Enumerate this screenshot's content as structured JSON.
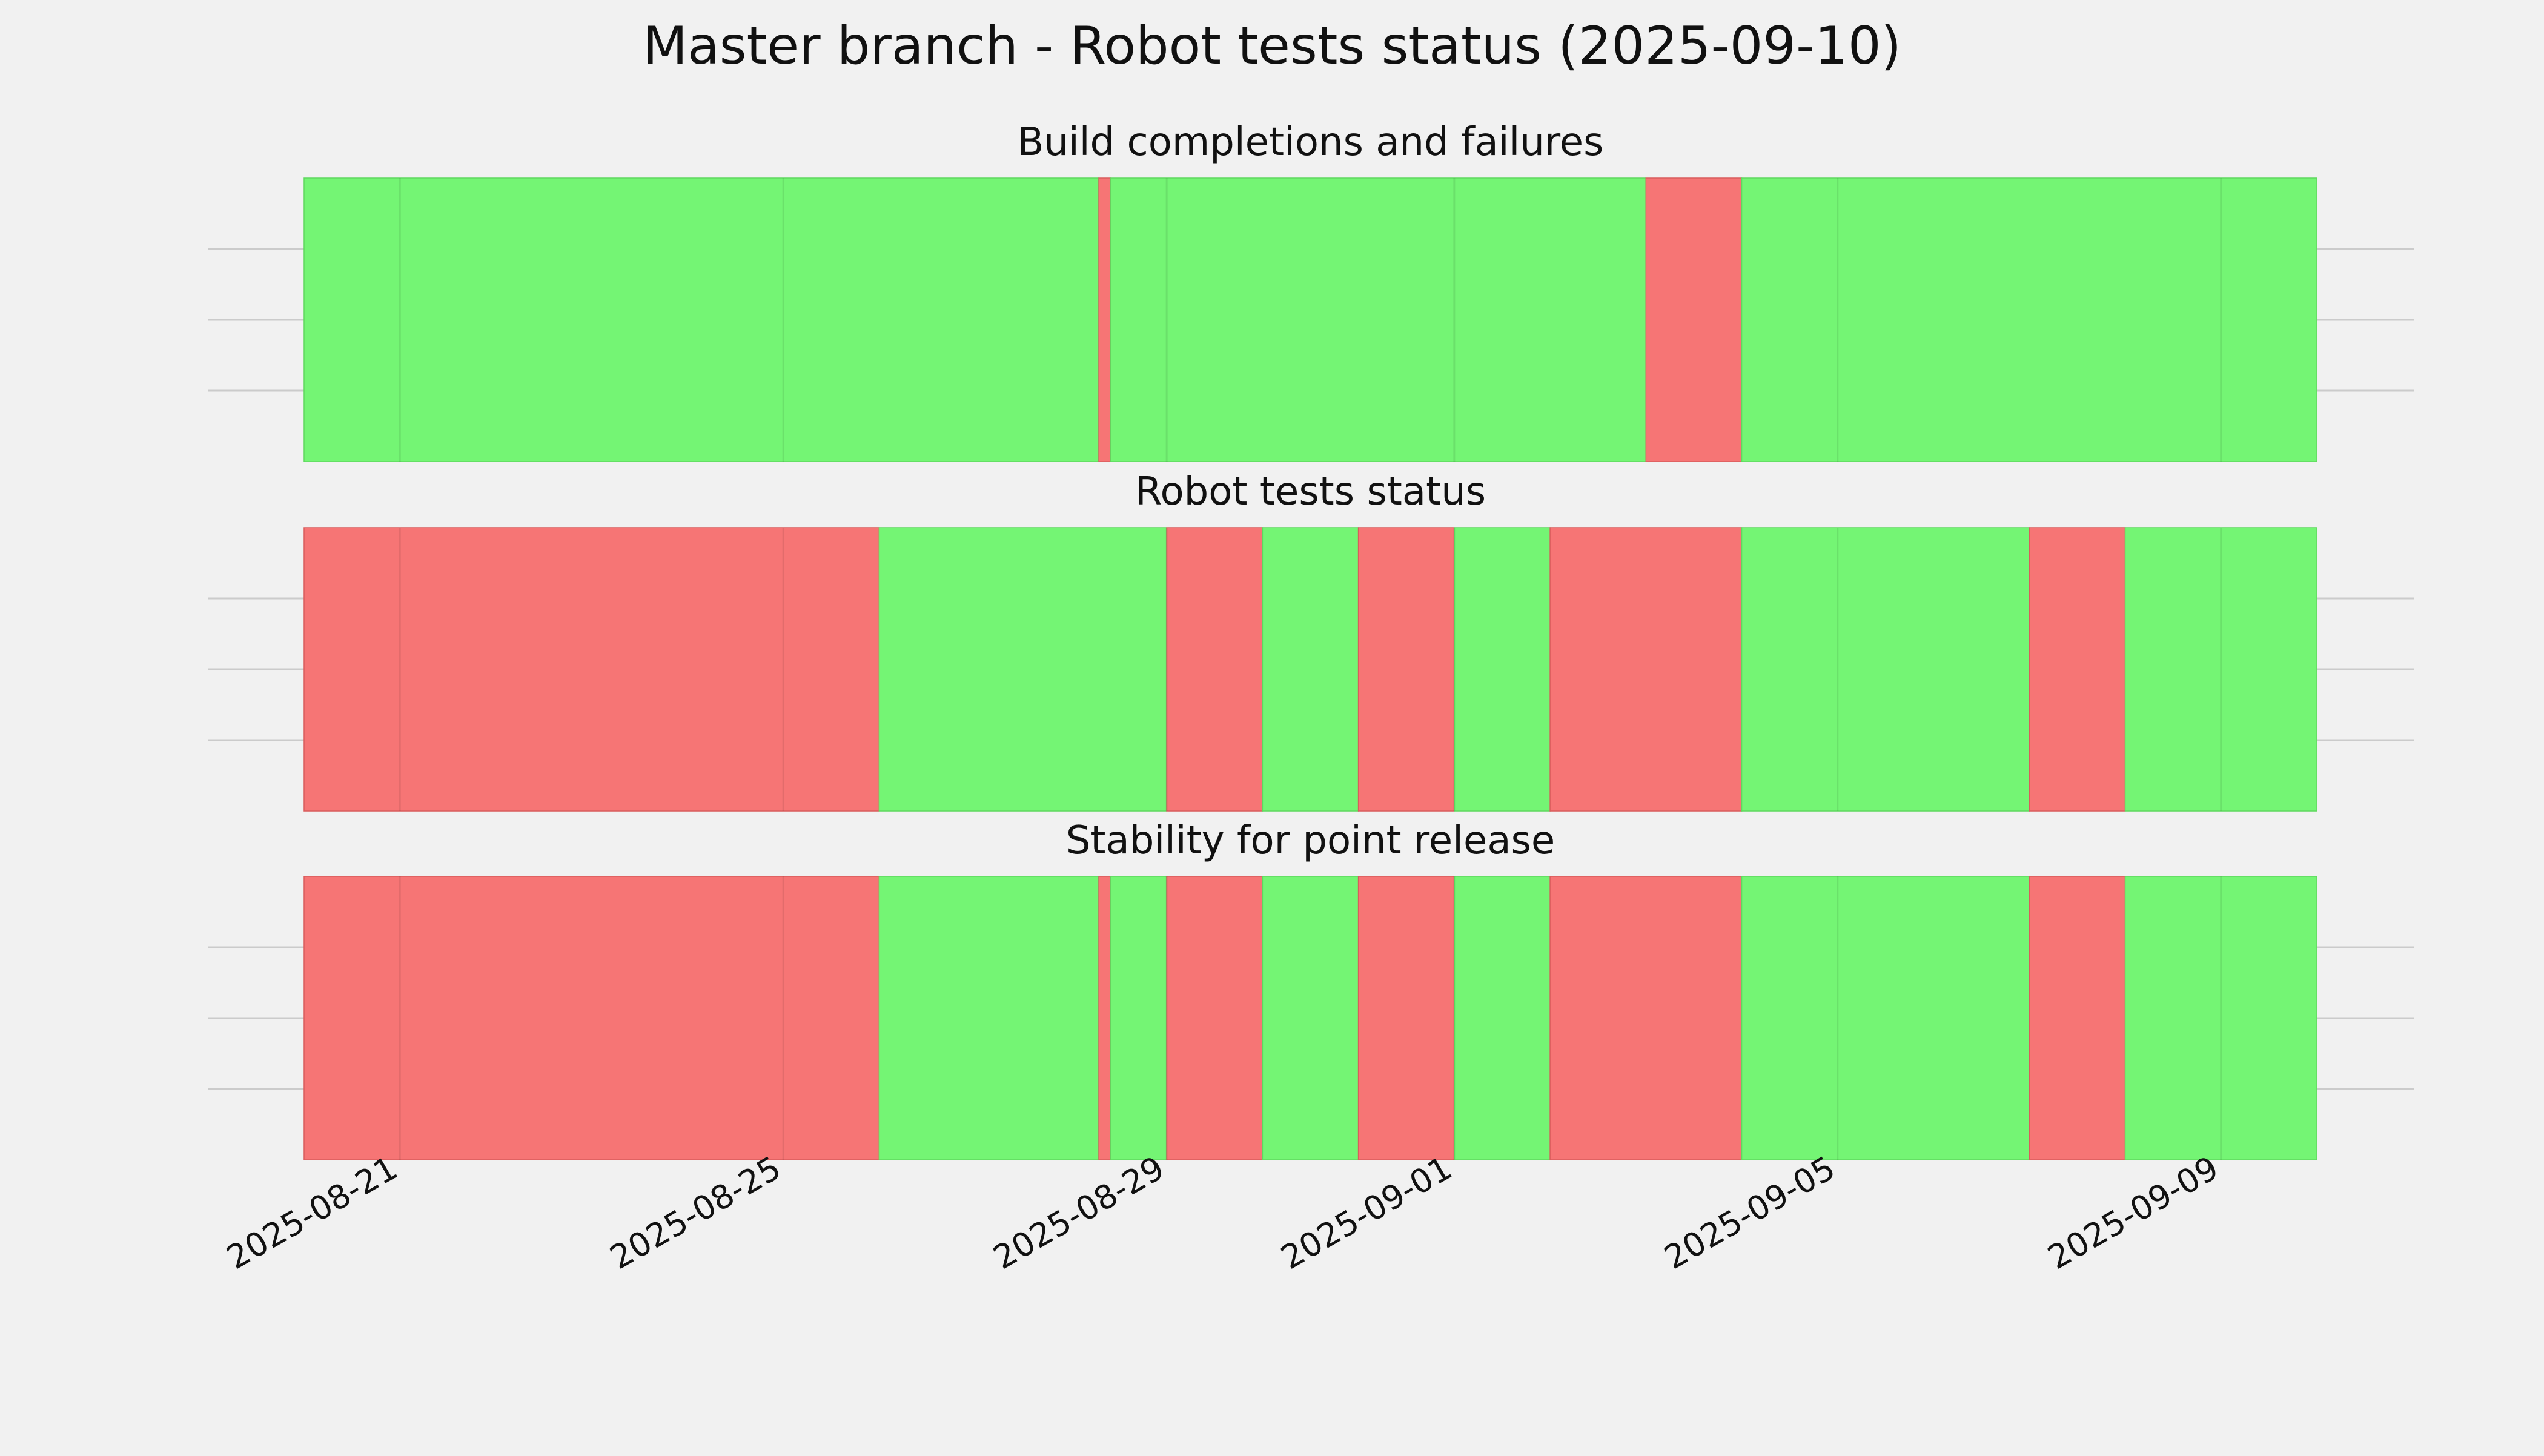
{
  "title": "Master branch - Robot tests status (2025-09-10)",
  "colors": {
    "pass": "#74f574",
    "fail": "#f67575",
    "background": "#f1f1f1",
    "grid": "#cbcbcb",
    "text": "#111111"
  },
  "chart_data": {
    "type": "timeline",
    "x_type": "date",
    "xlim": [
      "2025-08-20",
      "2025-09-10"
    ],
    "xticks": [
      "2025-08-21",
      "2025-08-25",
      "2025-08-29",
      "2025-09-01",
      "2025-09-05",
      "2025-09-09"
    ],
    "grid": true,
    "panels": [
      {
        "title": "Build completions and failures",
        "segments": [
          {
            "start": "2025-08-20",
            "end": "2025-08-28 07:00",
            "status": "pass"
          },
          {
            "start": "2025-08-28 07:00",
            "end": "2025-08-28 10:00",
            "status": "fail"
          },
          {
            "start": "2025-08-28 10:00",
            "end": "2025-09-03",
            "status": "pass"
          },
          {
            "start": "2025-09-03",
            "end": "2025-09-04",
            "status": "fail"
          },
          {
            "start": "2025-09-04",
            "end": "2025-09-10",
            "status": "pass"
          }
        ]
      },
      {
        "title": "Robot tests status",
        "segments": [
          {
            "start": "2025-08-20",
            "end": "2025-08-26",
            "status": "fail"
          },
          {
            "start": "2025-08-26",
            "end": "2025-08-29",
            "status": "pass"
          },
          {
            "start": "2025-08-29",
            "end": "2025-08-30",
            "status": "fail"
          },
          {
            "start": "2025-08-30",
            "end": "2025-08-31",
            "status": "pass"
          },
          {
            "start": "2025-08-31",
            "end": "2025-09-01",
            "status": "fail"
          },
          {
            "start": "2025-09-01",
            "end": "2025-09-02",
            "status": "pass"
          },
          {
            "start": "2025-09-02",
            "end": "2025-09-04",
            "status": "fail"
          },
          {
            "start": "2025-09-04",
            "end": "2025-09-07",
            "status": "pass"
          },
          {
            "start": "2025-09-07",
            "end": "2025-09-08",
            "status": "fail"
          },
          {
            "start": "2025-09-08",
            "end": "2025-09-10",
            "status": "pass"
          }
        ]
      },
      {
        "title": "Stability for point release",
        "segments": [
          {
            "start": "2025-08-20",
            "end": "2025-08-26",
            "status": "fail"
          },
          {
            "start": "2025-08-26",
            "end": "2025-08-28 07:00",
            "status": "pass"
          },
          {
            "start": "2025-08-28 07:00",
            "end": "2025-08-28 10:00",
            "status": "fail"
          },
          {
            "start": "2025-08-28 10:00",
            "end": "2025-08-29",
            "status": "pass"
          },
          {
            "start": "2025-08-29",
            "end": "2025-08-30",
            "status": "fail"
          },
          {
            "start": "2025-08-30",
            "end": "2025-08-31",
            "status": "pass"
          },
          {
            "start": "2025-08-31",
            "end": "2025-09-01",
            "status": "fail"
          },
          {
            "start": "2025-09-01",
            "end": "2025-09-02",
            "status": "pass"
          },
          {
            "start": "2025-09-02",
            "end": "2025-09-04",
            "status": "fail"
          },
          {
            "start": "2025-09-04",
            "end": "2025-09-07",
            "status": "pass"
          },
          {
            "start": "2025-09-07",
            "end": "2025-09-08",
            "status": "fail"
          },
          {
            "start": "2025-09-08",
            "end": "2025-09-10",
            "status": "pass"
          }
        ]
      }
    ]
  }
}
